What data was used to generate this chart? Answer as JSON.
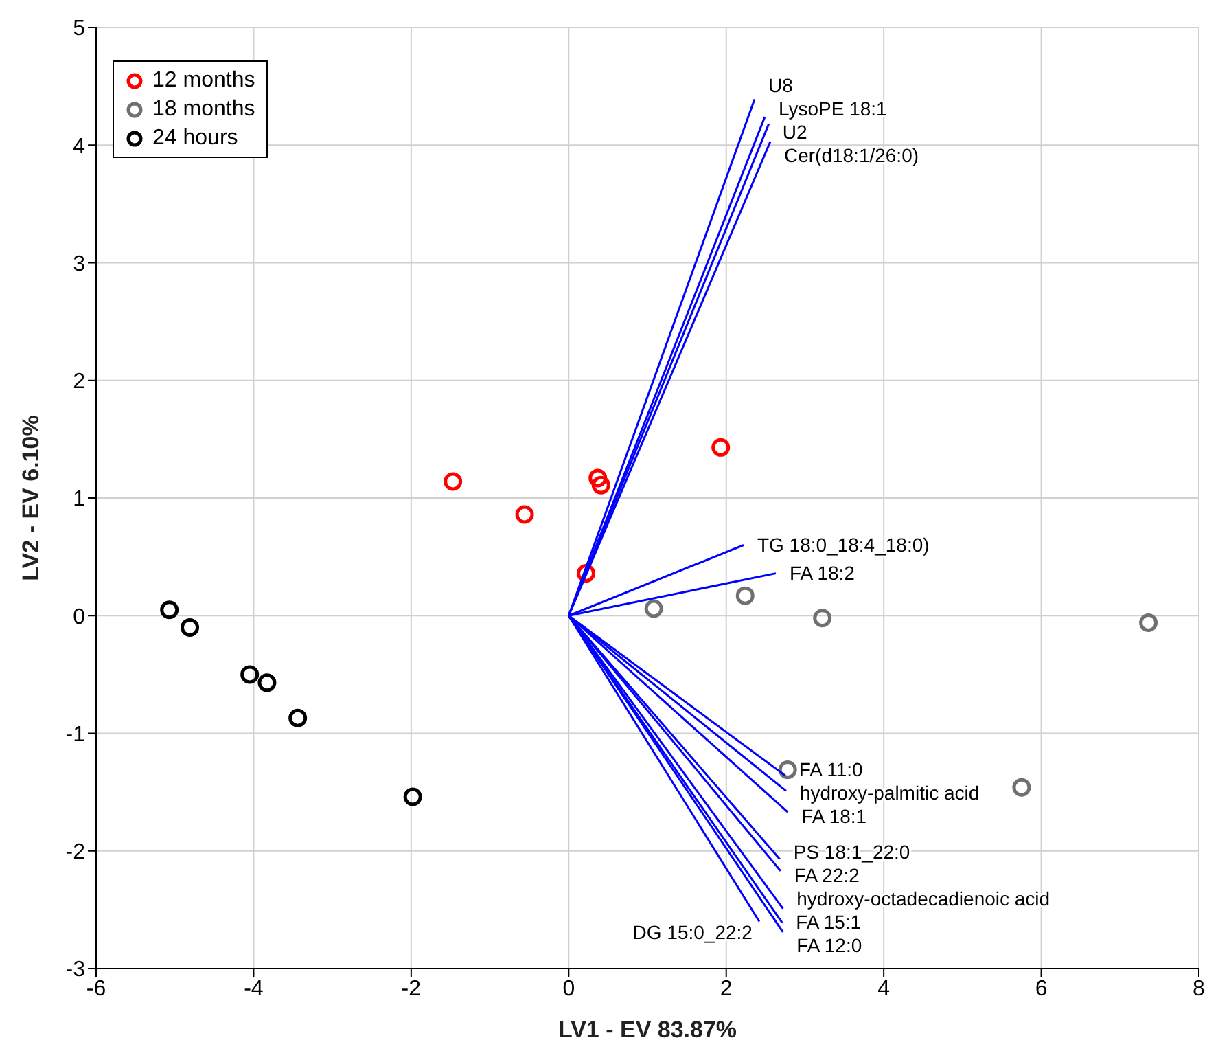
{
  "chart_data": {
    "type": "scatter",
    "xlabel": "LV1 - EV 83.87%",
    "ylabel": "LV2 - EV 6.10%",
    "xlim": [
      -6,
      8
    ],
    "xticks": [
      -6,
      -4,
      -2,
      0,
      2,
      4,
      6,
      8
    ],
    "ylim": [
      -3,
      5
    ],
    "yticks": [
      -3,
      -2,
      -1,
      0,
      1,
      2,
      3,
      4,
      5
    ],
    "grid": true,
    "legend": "top left",
    "marker": "circle",
    "series": [
      {
        "name": "12 months",
        "color": "#ff0000",
        "x": [
          -1.47,
          -0.56,
          0.37,
          0.41,
          1.93,
          0.22
        ],
        "values": [
          1.14,
          0.86,
          1.17,
          1.11,
          1.43,
          0.36
        ]
      },
      {
        "name": "18 months",
        "color": "#707070",
        "x": [
          1.08,
          2.24,
          3.22,
          7.36,
          2.78,
          5.75
        ],
        "values": [
          0.06,
          0.17,
          -0.02,
          -0.06,
          -1.31,
          -1.46
        ]
      },
      {
        "name": "24 hours",
        "color": "#000000",
        "x": [
          -5.07,
          -4.81,
          -4.05,
          -3.83,
          -3.44,
          -1.98
        ],
        "values": [
          0.05,
          -0.1,
          -0.5,
          -0.57,
          -0.87,
          -1.54
        ]
      },
      {
        "name": "U8",
        "type": "line",
        "marker": "none",
        "color": "#0000ff",
        "x": [
          0,
          2.36
        ],
        "values": [
          0,
          4.39
        ]
      },
      {
        "name": "LysoPE 18:1",
        "type": "line",
        "marker": "none",
        "color": "#0000ff",
        "x": [
          0,
          2.49
        ],
        "values": [
          0,
          4.24
        ]
      },
      {
        "name": "U2",
        "type": "line",
        "marker": "none",
        "color": "#0000ff",
        "x": [
          0,
          2.54
        ],
        "values": [
          0,
          4.18
        ]
      },
      {
        "name": "Cer(d18:1/26:0)",
        "type": "line",
        "marker": "none",
        "color": "#0000ff",
        "x": [
          0,
          2.56
        ],
        "values": [
          0,
          4.03
        ]
      },
      {
        "name": "TG 18:0_18:4_18:0)",
        "type": "line",
        "marker": "none",
        "color": "#0000ff",
        "x": [
          0,
          2.22
        ],
        "values": [
          0,
          0.6
        ]
      },
      {
        "name": "FA 18:2",
        "type": "line",
        "marker": "none",
        "color": "#0000ff",
        "x": [
          0,
          2.63
        ],
        "values": [
          0,
          0.36
        ]
      },
      {
        "name": "FA 11:0",
        "type": "line",
        "marker": "none",
        "color": "#0000ff",
        "x": [
          0,
          2.75
        ],
        "values": [
          0,
          -1.36
        ]
      },
      {
        "name": "hydroxy-palmitic acid",
        "type": "line",
        "marker": "none",
        "color": "#0000ff",
        "x": [
          0,
          2.76
        ],
        "values": [
          0,
          -1.49
        ]
      },
      {
        "name": "FA 18:1",
        "type": "line",
        "marker": "none",
        "color": "#0000ff",
        "x": [
          0,
          2.78
        ],
        "values": [
          0,
          -1.67
        ]
      },
      {
        "name": "PS 18:1_22:0",
        "type": "line",
        "marker": "none",
        "color": "#0000ff",
        "x": [
          0,
          2.68
        ],
        "values": [
          0,
          -2.07
        ]
      },
      {
        "name": "FA 22:2",
        "type": "line",
        "marker": "none",
        "color": "#0000ff",
        "x": [
          0,
          2.69
        ],
        "values": [
          0,
          -2.17
        ]
      },
      {
        "name": "hydroxy-octadecadienoic acid",
        "type": "line",
        "marker": "none",
        "color": "#0000ff",
        "x": [
          0,
          2.72
        ],
        "values": [
          0,
          -2.49
        ]
      },
      {
        "name": "FA 15:1",
        "type": "line",
        "marker": "none",
        "color": "#0000ff",
        "x": [
          0,
          2.71
        ],
        "values": [
          0,
          -2.61
        ]
      },
      {
        "name": "FA 12:0",
        "type": "line",
        "marker": "none",
        "color": "#0000ff",
        "x": [
          0,
          2.72
        ],
        "values": [
          0,
          -2.69
        ]
      },
      {
        "name": "DG 15:0_22:2",
        "type": "line",
        "marker": "none",
        "color": "#0000ff",
        "x": [
          0,
          2.42
        ],
        "values": [
          0,
          -2.6
        ]
      }
    ]
  }
}
